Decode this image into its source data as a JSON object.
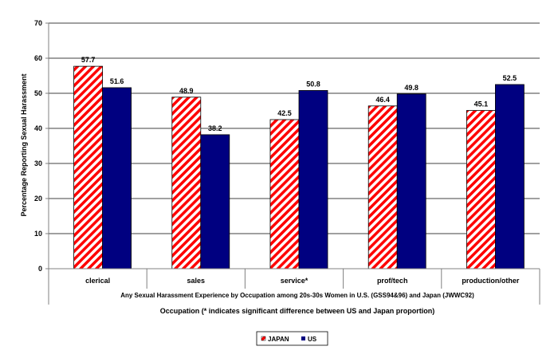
{
  "chart_data": {
    "type": "bar",
    "categories": [
      "clerical",
      "sales",
      "service*",
      "prof/tech",
      "production/other"
    ],
    "series": [
      {
        "name": "JAPAN",
        "values": [
          57.7,
          48.9,
          42.5,
          46.4,
          45.1
        ],
        "fill": "hatch-red"
      },
      {
        "name": "US",
        "values": [
          51.6,
          38.2,
          50.8,
          49.8,
          52.5
        ],
        "fill": "#000080"
      }
    ],
    "data_labels": [
      [
        "57.7",
        "48.9",
        "42.5",
        "46.4",
        "45.1"
      ],
      [
        "51.6",
        "38.2",
        "50.8",
        "49.8",
        "52.5"
      ]
    ],
    "ylabel": "Percentage Reporting Sexual Harassment",
    "subtitle": "Any Sexual Harassment Experience by Occupation among 20s-30s Women in U.S. (GSS94&96) and Japan (JWWC92)",
    "xlabel": "Occupation (* indicates significant difference between US and Japan proportion)",
    "ylim": [
      0,
      70
    ],
    "yticks": [
      0,
      10,
      20,
      30,
      40,
      50,
      60,
      70
    ],
    "grid": true,
    "legend": "bottom-center",
    "colors": {
      "japan_stripe": "#ff0000",
      "us": "#000080",
      "grid": "#000000",
      "axis": "#808080"
    }
  }
}
